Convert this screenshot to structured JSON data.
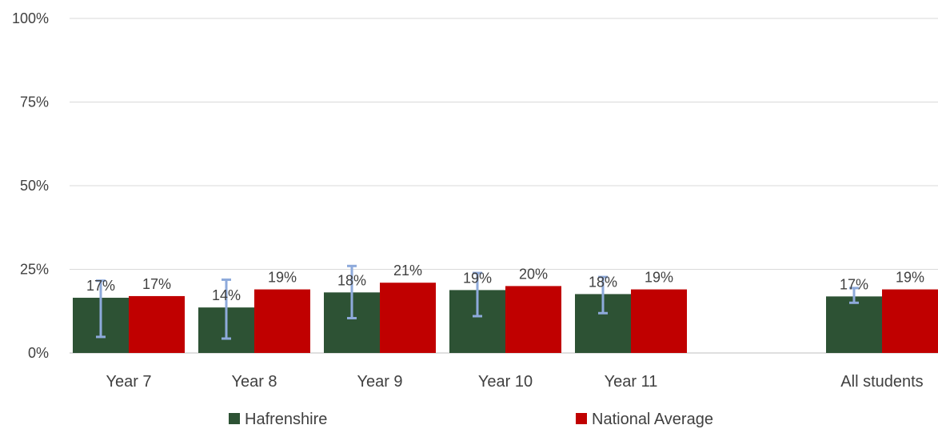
{
  "chart_data": {
    "type": "bar",
    "title": "",
    "xlabel": "",
    "ylabel": "",
    "ylim": [
      0,
      100
    ],
    "y_ticks": [
      {
        "value": 0,
        "label": "0%"
      },
      {
        "value": 25,
        "label": "25%"
      },
      {
        "value": 50,
        "label": "50%"
      },
      {
        "value": 75,
        "label": "75%"
      },
      {
        "value": 100,
        "label": "100%"
      }
    ],
    "grid": true,
    "legend_position": "bottom",
    "categories": [
      "Year 7",
      "Year 8",
      "Year 9",
      "Year 10",
      "Year 11",
      "All students"
    ],
    "category_gap_before": [
      false,
      false,
      false,
      false,
      false,
      true
    ],
    "series": [
      {
        "name": "Hafrenshire",
        "color": "#2d5234",
        "values": [
          16.5,
          13.6,
          18.1,
          18.8,
          17.6,
          16.9
        ],
        "labels": [
          "17%",
          "14%",
          "18%",
          "19%",
          "18%",
          "17%"
        ],
        "error_bars": [
          [
            4.8,
            21.6
          ],
          [
            4.3,
            21.9
          ],
          [
            10.4,
            26.0
          ],
          [
            11.0,
            23.9
          ],
          [
            11.9,
            22.7
          ],
          [
            15.0,
            19.4
          ]
        ]
      },
      {
        "name": "National Average",
        "color": "#c00000",
        "values": [
          17,
          19,
          21,
          20,
          19,
          19
        ],
        "labels": [
          "17%",
          "19%",
          "21%",
          "20%",
          "19%",
          "19%"
        ]
      }
    ],
    "error_bar_color": "#8eaadb"
  }
}
